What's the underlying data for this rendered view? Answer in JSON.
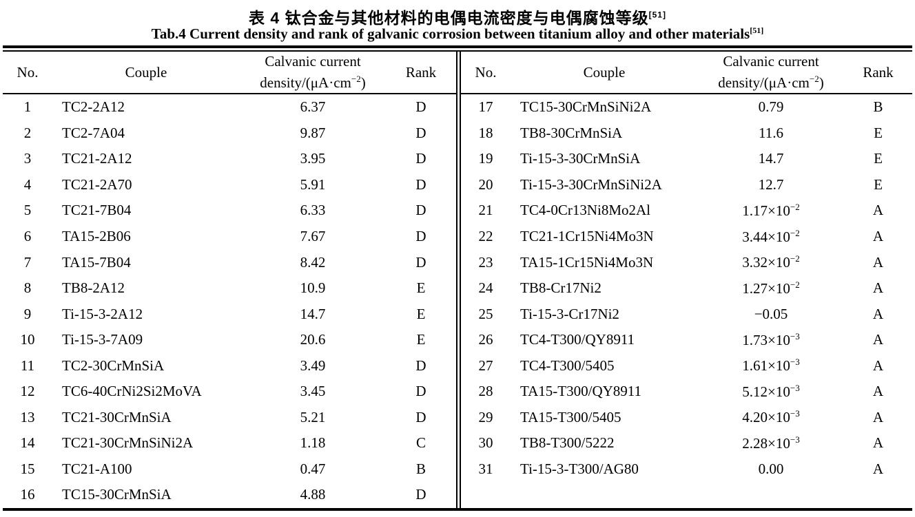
{
  "page": {
    "title_zh": "表 4  钛合金与其他材料的电偶电流密度与电偶腐蚀等级",
    "title_zh_ref": "[51]",
    "title_en": "Tab.4 Current density and rank of galvanic corrosion between titanium alloy and other materials",
    "title_en_ref": "[51]"
  },
  "table": {
    "columns": {
      "no": "No.",
      "couple": "Couple",
      "density_line1": "Calvanic current",
      "density_line2_pre": "density/(μA·cm",
      "density_exp": "−2",
      "density_line2_post": ")",
      "rank": "Rank"
    },
    "left_rows": [
      {
        "no": "1",
        "couple": "TC2-2A12",
        "density": "6.37",
        "exp": "",
        "rank": "D"
      },
      {
        "no": "2",
        "couple": "TC2-7A04",
        "density": "9.87",
        "exp": "",
        "rank": "D"
      },
      {
        "no": "3",
        "couple": "TC21-2A12",
        "density": "3.95",
        "exp": "",
        "rank": "D"
      },
      {
        "no": "4",
        "couple": "TC21-2A70",
        "density": "5.91",
        "exp": "",
        "rank": "D"
      },
      {
        "no": "5",
        "couple": "TC21-7B04",
        "density": "6.33",
        "exp": "",
        "rank": "D"
      },
      {
        "no": "6",
        "couple": "TA15-2B06",
        "density": "7.67",
        "exp": "",
        "rank": "D"
      },
      {
        "no": "7",
        "couple": "TA15-7B04",
        "density": "8.42",
        "exp": "",
        "rank": "D"
      },
      {
        "no": "8",
        "couple": "TB8-2A12",
        "density": "10.9",
        "exp": "",
        "rank": "E"
      },
      {
        "no": "9",
        "couple": "Ti-15-3-2A12",
        "density": "14.7",
        "exp": "",
        "rank": "E"
      },
      {
        "no": "10",
        "couple": "Ti-15-3-7A09",
        "density": "20.6",
        "exp": "",
        "rank": "E"
      },
      {
        "no": "11",
        "couple": "TC2-30CrMnSiA",
        "density": "3.49",
        "exp": "",
        "rank": "D"
      },
      {
        "no": "12",
        "couple": "TC6-40CrNi2Si2MoVA",
        "density": "3.45",
        "exp": "",
        "rank": "D"
      },
      {
        "no": "13",
        "couple": "TC21-30CrMnSiA",
        "density": "5.21",
        "exp": "",
        "rank": "D"
      },
      {
        "no": "14",
        "couple": "TC21-30CrMnSiNi2A",
        "density": "1.18",
        "exp": "",
        "rank": "C"
      },
      {
        "no": "15",
        "couple": "TC21-A100",
        "density": "0.47",
        "exp": "",
        "rank": "B"
      },
      {
        "no": "16",
        "couple": "TC15-30CrMnSiA",
        "density": "4.88",
        "exp": "",
        "rank": "D"
      }
    ],
    "right_rows": [
      {
        "no": "17",
        "couple": "TC15-30CrMnSiNi2A",
        "density": "0.79",
        "exp": "",
        "rank": "B"
      },
      {
        "no": "18",
        "couple": "TB8-30CrMnSiA",
        "density": "11.6",
        "exp": "",
        "rank": "E"
      },
      {
        "no": "19",
        "couple": "Ti-15-3-30CrMnSiA",
        "density": "14.7",
        "exp": "",
        "rank": "E"
      },
      {
        "no": "20",
        "couple": "Ti-15-3-30CrMnSiNi2A",
        "density": "12.7",
        "exp": "",
        "rank": "E"
      },
      {
        "no": "21",
        "couple": "TC4-0Cr13Ni8Mo2Al",
        "density": "1.17×10",
        "exp": "−2",
        "rank": "A"
      },
      {
        "no": "22",
        "couple": "TC21-1Cr15Ni4Mo3N",
        "density": "3.44×10",
        "exp": "−2",
        "rank": "A"
      },
      {
        "no": "23",
        "couple": "TA15-1Cr15Ni4Mo3N",
        "density": "3.32×10",
        "exp": "−2",
        "rank": "A"
      },
      {
        "no": "24",
        "couple": "TB8-Cr17Ni2",
        "density": "1.27×10",
        "exp": "−2",
        "rank": "A"
      },
      {
        "no": "25",
        "couple": "Ti-15-3-Cr17Ni2",
        "density": "−0.05",
        "exp": "",
        "rank": "A"
      },
      {
        "no": "26",
        "couple": "TC4-T300/QY8911",
        "density": "1.73×10",
        "exp": "−3",
        "rank": "A"
      },
      {
        "no": "27",
        "couple": "TC4-T300/5405",
        "density": "1.61×10",
        "exp": "−3",
        "rank": "A"
      },
      {
        "no": "28",
        "couple": "TA15-T300/QY8911",
        "density": "5.12×10",
        "exp": "−3",
        "rank": "A"
      },
      {
        "no": "29",
        "couple": "TA15-T300/5405",
        "density": "4.20×10",
        "exp": "−3",
        "rank": "A"
      },
      {
        "no": "30",
        "couple": "TB8-T300/5222",
        "density": "2.28×10",
        "exp": "−3",
        "rank": "A"
      },
      {
        "no": "31",
        "couple": "Ti-15-3-T300/AG80",
        "density": "0.00",
        "exp": "",
        "rank": "A"
      }
    ]
  }
}
